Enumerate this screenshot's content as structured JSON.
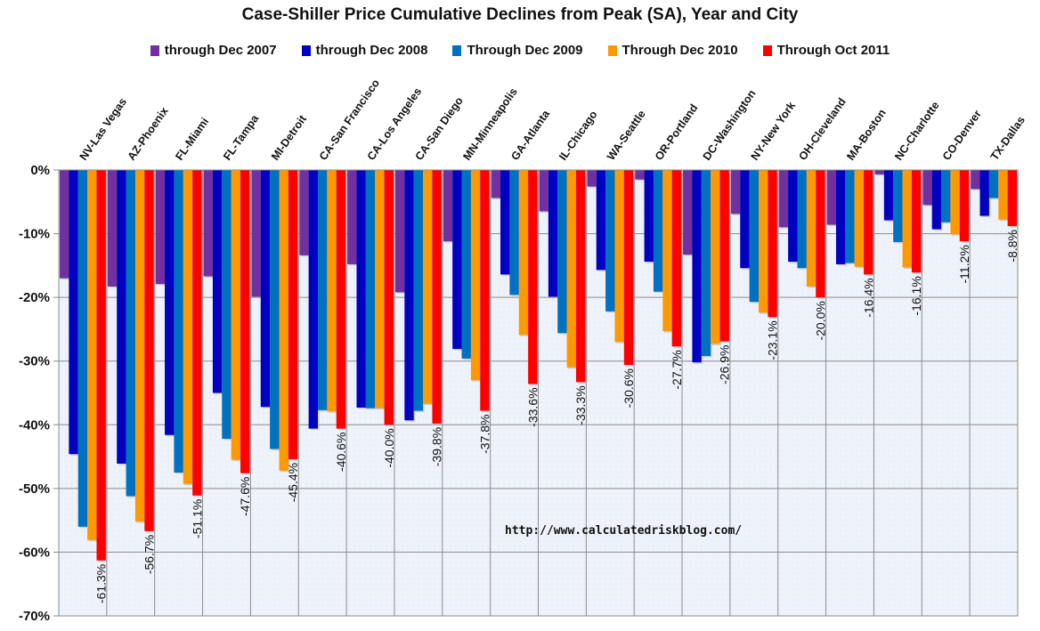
{
  "chart_data": {
    "type": "bar",
    "title": "Case-Shiller Price Cumulative Declines from Peak (SA),  Year and City",
    "xlabel": "",
    "ylabel": "",
    "ylim": [
      -70,
      0
    ],
    "yticks": [
      "0%",
      "-10%",
      "-20%",
      "-30%",
      "-40%",
      "-50%",
      "-60%",
      "-70%"
    ],
    "ytick_values": [
      0,
      -10,
      -20,
      -30,
      -40,
      -50,
      -60,
      -70
    ],
    "grid": true,
    "legend_position": "top",
    "watermark": "http://www.calculatedriskblog.com/",
    "categories": [
      "NV-Las Vegas",
      "AZ-Phoenix",
      "FL-Miami",
      "FL-Tampa",
      "MI-Detroit",
      "CA-San Francisco",
      "CA-Los Angeles",
      "CA-San Diego",
      "MN-Minneapolis",
      "GA-Atlanta",
      "IL-Chicago",
      "WA-Seattle",
      "OR-Portland",
      "DC-Washington",
      "NY-New York",
      "OH-Cleveland",
      "MA-Boston",
      "NC-Charlotte",
      "CO-Denver",
      "TX-Dallas"
    ],
    "series": [
      {
        "name": "through Dec 2007",
        "color": "#7030a0",
        "values": [
          -17.0,
          -18.3,
          -17.9,
          -16.7,
          -19.9,
          -13.4,
          -14.8,
          -19.2,
          -11.2,
          -4.4,
          -6.5,
          -2.6,
          -1.5,
          -13.3,
          -6.9,
          -9.0,
          -8.6,
          -0.7,
          -5.5,
          -3.0
        ]
      },
      {
        "name": "through Dec 2008",
        "color": "#0000c0",
        "values": [
          -44.6,
          -46.1,
          -41.6,
          -35.0,
          -37.2,
          -40.6,
          -37.3,
          -39.3,
          -28.1,
          -16.4,
          -19.9,
          -15.7,
          -14.4,
          -30.2,
          -15.4,
          -14.4,
          -14.8,
          -7.9,
          -9.3,
          -7.2
        ]
      },
      {
        "name": "Through Dec 2009",
        "color": "#0070c0",
        "values": [
          -56.0,
          -51.2,
          -47.5,
          -42.2,
          -43.8,
          -37.7,
          -37.4,
          -37.8,
          -29.6,
          -19.6,
          -25.6,
          -22.2,
          -19.1,
          -29.2,
          -20.7,
          -15.4,
          -14.6,
          -11.3,
          -8.2,
          -4.4
        ]
      },
      {
        "name": "Through Dec 2010",
        "color": "#ff9900",
        "values": [
          -58.1,
          -55.2,
          -49.3,
          -45.5,
          -47.2,
          -37.9,
          -37.4,
          -36.7,
          -33.0,
          -25.9,
          -31.0,
          -27.0,
          -25.3,
          -27.3,
          -22.4,
          -18.3,
          -15.2,
          -15.3,
          -10.1,
          -7.8
        ]
      },
      {
        "name": "Through Oct 2011",
        "color": "#ff0000",
        "values": [
          -61.3,
          -56.7,
          -51.1,
          -47.6,
          -45.4,
          -40.6,
          -40.0,
          -39.8,
          -37.8,
          -33.6,
          -33.3,
          -30.6,
          -27.7,
          -26.9,
          -23.1,
          -20.0,
          -16.4,
          -16.1,
          -11.2,
          -8.8
        ]
      }
    ],
    "data_labels": [
      "-61.3%",
      "-56.7%",
      "-51.1%",
      "-47.6%",
      "-45.4%",
      "-40.6%",
      "-40.0%",
      "-39.8%",
      "-37.8%",
      "-33.6%",
      "-33.3%",
      "-30.6%",
      "-27.7%",
      "-26.9%",
      "-23.1%",
      "-20.0%",
      "-16.4%",
      "-16.1%",
      "-11.2%",
      "-8.8%"
    ]
  }
}
